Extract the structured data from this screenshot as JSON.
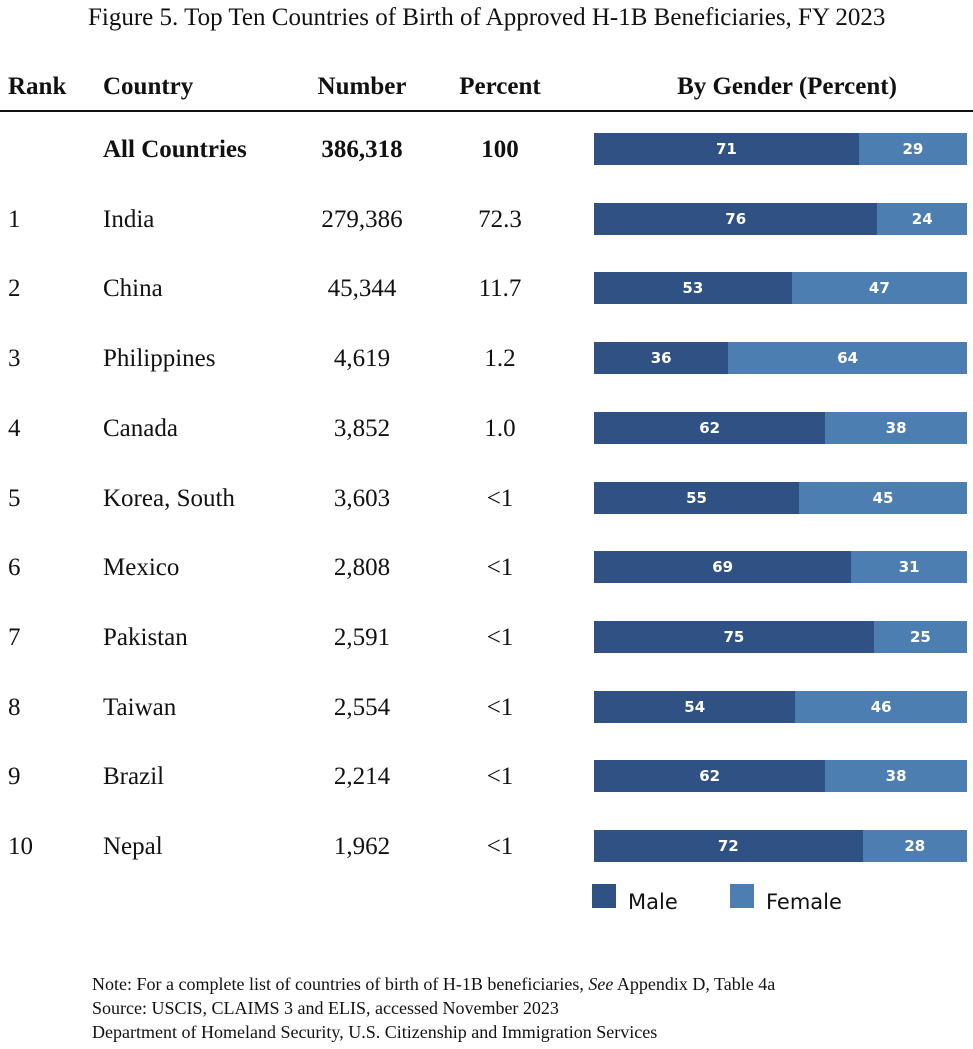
{
  "title": "Figure 5. Top Ten Countries of Birth of Approved H-1B Beneficiaries, FY 2023",
  "headers": {
    "rank": "Rank",
    "country": "Country",
    "number": "Number",
    "percent": "Percent",
    "gender": "By Gender (Percent)"
  },
  "colors": {
    "male": "#2f5183",
    "female": "#4c7eb2"
  },
  "chart_data": {
    "type": "table",
    "title": "Figure 5. Top Ten Countries of Birth of Approved H-1B Beneficiaries, FY 2023",
    "columns": [
      "Rank",
      "Country",
      "Number",
      "Percent",
      "By Gender (Percent)"
    ],
    "legend": [
      "Male",
      "Female"
    ],
    "rows": [
      {
        "rank": "",
        "country": "All Countries",
        "number": "386,318",
        "percent": "100",
        "male": 71,
        "female": 29,
        "total": true
      },
      {
        "rank": "1",
        "country": "India",
        "number": "279,386",
        "percent": "72.3",
        "male": 76,
        "female": 24
      },
      {
        "rank": "2",
        "country": "China",
        "number": "45,344",
        "percent": "11.7",
        "male": 53,
        "female": 47
      },
      {
        "rank": "3",
        "country": "Philippines",
        "number": "4,619",
        "percent": "1.2",
        "male": 36,
        "female": 64
      },
      {
        "rank": "4",
        "country": "Canada",
        "number": "3,852",
        "percent": "1.0",
        "male": 62,
        "female": 38
      },
      {
        "rank": "5",
        "country": "Korea, South",
        "number": "3,603",
        "percent": "<1",
        "male": 55,
        "female": 45
      },
      {
        "rank": "6",
        "country": "Mexico",
        "number": "2,808",
        "percent": "<1",
        "male": 69,
        "female": 31
      },
      {
        "rank": "7",
        "country": "Pakistan",
        "number": "2,591",
        "percent": "<1",
        "male": 75,
        "female": 25
      },
      {
        "rank": "8",
        "country": "Taiwan",
        "number": "2,554",
        "percent": "<1",
        "male": 54,
        "female": 46
      },
      {
        "rank": "9",
        "country": "Brazil",
        "number": "2,214",
        "percent": "<1",
        "male": 62,
        "female": 38
      },
      {
        "rank": "10",
        "country": "Nepal",
        "number": "1,962",
        "percent": "<1",
        "male": 72,
        "female": 28
      }
    ]
  },
  "notes": {
    "line1_prefix": "Note: For a complete list of countries of birth of H-1B beneficiaries, ",
    "line1_see": "See",
    "line1_suffix": " Appendix D, Table 4a",
    "line2": "Source: USCIS, CLAIMS 3 and ELIS, accessed November 2023",
    "line3": "Department of Homeland Security, U.S. Citizenship and Immigration Services"
  }
}
